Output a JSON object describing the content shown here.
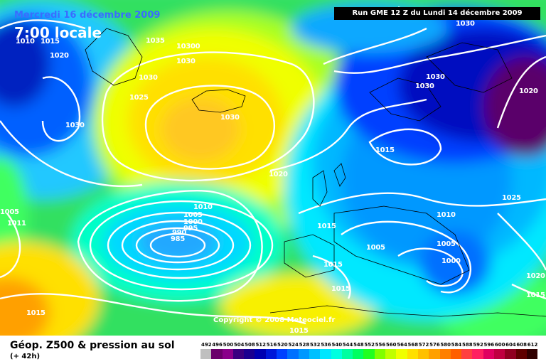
{
  "header": {
    "date_text": "Mercredi 16 décembre 2009",
    "time_text": "7:00 locale",
    "run_text": "Run GME 12 Z du Lundi 14 décembre 2009"
  },
  "map": {
    "copyright": "Copyright © 2008 Meteociel.fr",
    "isobar_labels": [
      "1010",
      "1015",
      "1020",
      "1035",
      "10300",
      "1030",
      "1030",
      "1030",
      "1025",
      "1030",
      "1030",
      "1030",
      "1030",
      "1020",
      "1015",
      "1020",
      "1025",
      "1005",
      "1011",
      "1010",
      "1005",
      "1000",
      "995",
      "990",
      "985",
      "1015",
      "1010",
      "1005",
      "1005",
      "1000",
      "1015",
      "1015",
      "1020",
      "1015",
      "1015",
      "1015"
    ]
  },
  "footer": {
    "title": "Géop. Z500 & pression au sol",
    "subtitle": "(+ 42h)",
    "legend_values": [
      "492",
      "496",
      "500",
      "504",
      "508",
      "512",
      "516",
      "520",
      "524",
      "528",
      "532",
      "536",
      "540",
      "544",
      "548",
      "552",
      "556",
      "560",
      "564",
      "568",
      "572",
      "576",
      "580",
      "584",
      "588",
      "592",
      "596",
      "600",
      "604",
      "608",
      "612"
    ],
    "legend_colors": [
      "#bfbfbf",
      "#6b006b",
      "#8a008a",
      "#3a0080",
      "#1a0090",
      "#0000b0",
      "#0018d8",
      "#0040ff",
      "#0070ff",
      "#0098ff",
      "#00c0ff",
      "#00e6ff",
      "#00ffe0",
      "#00ffa0",
      "#00ff60",
      "#20ff20",
      "#80ff00",
      "#c0ff00",
      "#f0ff00",
      "#ffe000",
      "#ffc000",
      "#ffa000",
      "#ff8000",
      "#ff6000",
      "#ff4040",
      "#ff2060",
      "#e00060",
      "#c00040",
      "#900020",
      "#600000",
      "#300000"
    ]
  }
}
